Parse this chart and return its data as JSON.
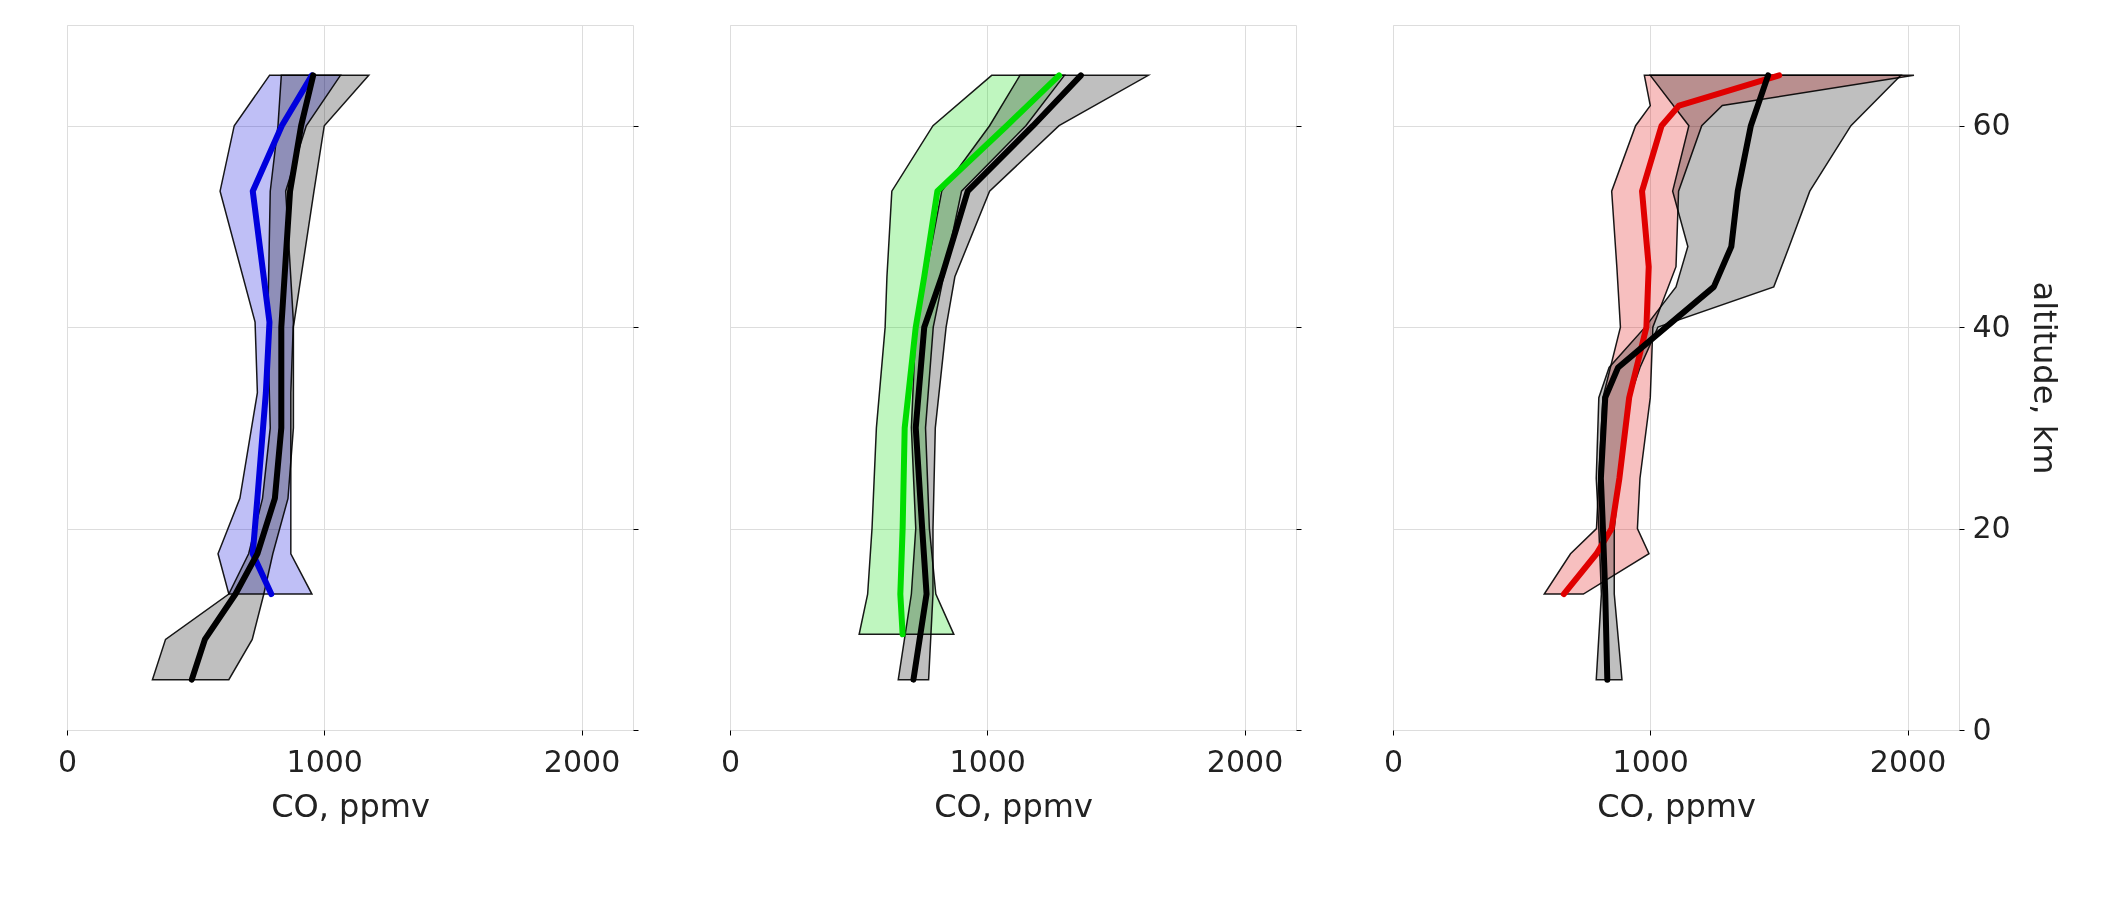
{
  "chart_data": [
    {
      "type": "line",
      "orientation": "horizontal",
      "xlabel": "CO, ppmv",
      "xlim": [
        0,
        2200
      ],
      "xticks": [
        0,
        1000,
        2000
      ],
      "ylim": [
        0,
        70
      ],
      "yticks": [
        0,
        20,
        40,
        60
      ],
      "tick_labels": "x",
      "grid": true,
      "series": [
        {
          "color": "#0000dd",
          "x": [
            13.5,
            17.5,
            23,
            33.5,
            40.5,
            53.5,
            60,
            65
          ],
          "values": [
            794,
            722,
            740,
            773,
            787,
            722,
            835,
            952
          ],
          "lower": [
            629,
            587,
            672,
            740,
            731,
            595,
            650,
            787
          ],
          "upper": [
            952,
            870,
            870,
            870,
            880,
            850,
            930,
            1063
          ]
        },
        {
          "color": "#000000",
          "x": [
            5,
            9,
            13.5,
            17.5,
            23,
            30,
            40,
            53.5,
            60,
            65
          ],
          "values": [
            485,
            536,
            655,
            740,
            808,
            833,
            833,
            867,
            910,
            957
          ],
          "lower": [
            332,
            383,
            629,
            706,
            760,
            790,
            780,
            790,
            820,
            833
          ],
          "upper": [
            629,
            720,
            765,
            800,
            859,
            880,
            880,
            960,
            1000,
            1173
          ]
        }
      ]
    },
    {
      "type": "line",
      "orientation": "horizontal",
      "xlabel": "CO, ppmv",
      "xlim": [
        0,
        2200
      ],
      "xticks": [
        0,
        1000,
        2000
      ],
      "ylim": [
        0,
        70
      ],
      "yticks": [
        0,
        20,
        40,
        60
      ],
      "tick_labels": "x",
      "grid": true,
      "series": [
        {
          "color": "#00dd00",
          "x": [
            9.5,
            13.5,
            20,
            30,
            40,
            45,
            53.5,
            60,
            65
          ],
          "values": [
            671,
            662,
            671,
            679,
            722,
            755,
            806,
            1076,
            1279
          ],
          "lower": [
            502,
            535,
            552,
            569,
            603,
            610,
            629,
            789,
            1017
          ],
          "upper": [
            870,
            800,
            775,
            760,
            790,
            830,
            900,
            1150,
            1300
          ]
        },
        {
          "color": "#000000",
          "x": [
            5,
            13.5,
            20,
            30,
            40,
            45,
            53.5,
            60,
            65
          ],
          "values": [
            713,
            764,
            747,
            722,
            755,
            823,
            924,
            1178,
            1364
          ],
          "lower": [
            654,
            705,
            722,
            705,
            722,
            760,
            823,
            1009,
            1127
          ],
          "upper": [
            772,
            789,
            789,
            798,
            840,
            874,
            1009,
            1279,
            1626
          ]
        }
      ]
    },
    {
      "type": "line",
      "orientation": "horizontal",
      "xlabel": "CO, ppmv",
      "ylabel": "altitude, km",
      "xlim": [
        0,
        2200
      ],
      "xticks": [
        0,
        1000,
        2000
      ],
      "ylim": [
        0,
        70
      ],
      "yticks": [
        0,
        20,
        40,
        60
      ],
      "grid": true,
      "series": [
        {
          "color": "#e00000",
          "x": [
            13.5,
            17.5,
            20,
            25,
            33,
            40,
            46,
            53.5,
            60,
            62,
            65
          ],
          "values": [
            664,
            791,
            850,
            880,
            918,
            985,
            994,
            968,
            1044,
            1112,
            1501
          ],
          "lower": [
            588,
            690,
            791,
            800,
            816,
            884,
            870,
            850,
            943,
            1000,
            977
          ],
          "upper": [
            740,
            995,
            950,
            960,
            1000,
            1010,
            1100,
            1110,
            1200,
            1280,
            2025
          ]
        },
        {
          "color": "#000000",
          "x": [
            5,
            13.5,
            20,
            25,
            33,
            36,
            40,
            44,
            48,
            53.5,
            60,
            65
          ],
          "values": [
            833,
            825,
            816,
            808,
            825,
            875,
            1061,
            1247,
            1315,
            1340,
            1391,
            1458
          ],
          "lower": [
            790,
            810,
            800,
            790,
            800,
            840,
            980,
            1100,
            1146,
            1087,
            1150,
            1000
          ],
          "upper": [
            890,
            860,
            860,
            880,
            920,
            960,
            1030,
            1480,
            1540,
            1620,
            1780,
            1974
          ]
        }
      ]
    }
  ]
}
